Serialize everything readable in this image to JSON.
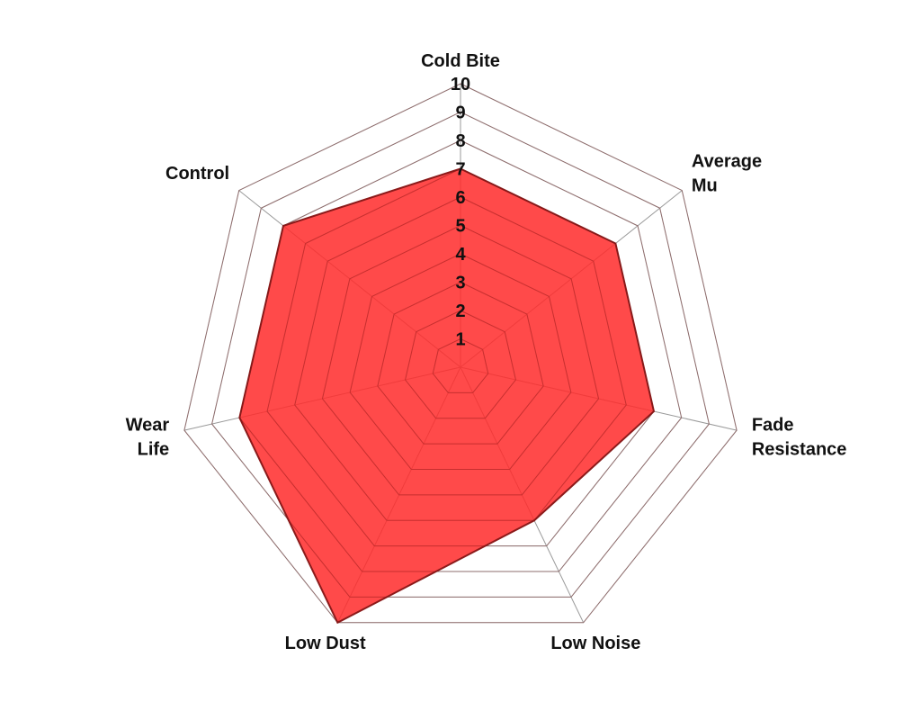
{
  "chart_data": {
    "type": "radar",
    "axes": [
      [
        "Cold Bite"
      ],
      [
        "Average",
        "Mu"
      ],
      [
        "Fade",
        "Resistance"
      ],
      [
        "Low Noise"
      ],
      [
        "Low Dust"
      ],
      [
        "Wear",
        "Life"
      ],
      [
        "Control"
      ]
    ],
    "series": [
      {
        "values": [
          7,
          7,
          7,
          6,
          10,
          8,
          8
        ],
        "fill": "#ff2a2a",
        "stroke": "#8b1a1a"
      }
    ],
    "rlim": [
      0,
      10
    ],
    "ticks": [
      1,
      2,
      3,
      4,
      5,
      6,
      7,
      8,
      9,
      10
    ],
    "grid": true,
    "grid_color": "#999999"
  }
}
